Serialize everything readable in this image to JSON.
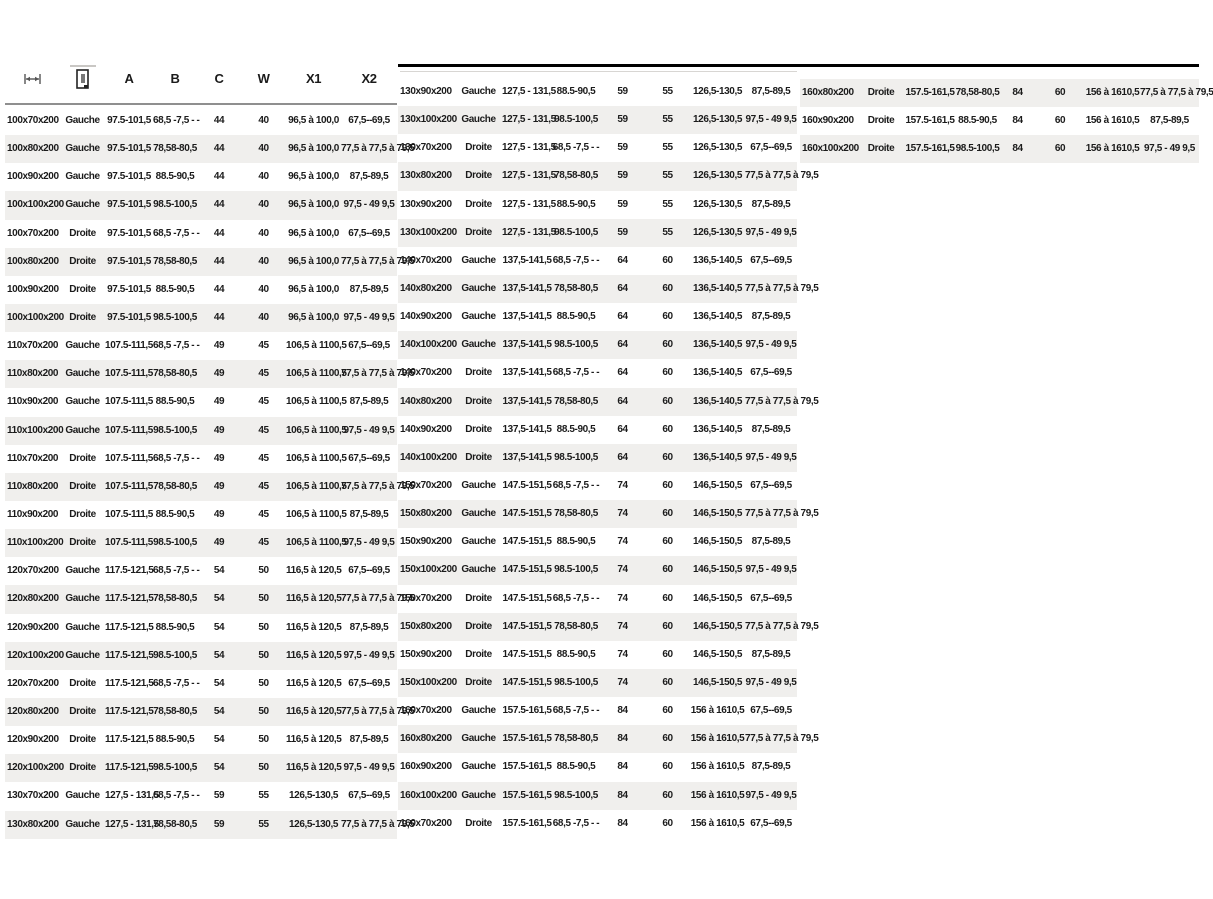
{
  "header": {
    "icons": {
      "width_icon": "width-dimension-icon",
      "door_icon": "door-orientation-icon"
    },
    "columns": [
      "A",
      "B",
      "C",
      "W",
      "X1",
      "X2"
    ]
  },
  "colors": {
    "stripe": "#f0efed",
    "rule_black": "#000000",
    "rule_gray": "#8f8f8f",
    "text": "#1b1b1b"
  },
  "tables": [
    {
      "rows": [
        {
          "size": "100x70x200",
          "side": "Gauche",
          "a": "97.5-101,5",
          "b": "68,5 -7,5 - -",
          "c": "44",
          "w": "40",
          "x1": "96,5 à 100,0",
          "x2": "67,5--69,5"
        },
        {
          "size": "100x80x200",
          "side": "Gauche",
          "a": "97.5-101,5",
          "b": "78,58-80,5",
          "c": "44",
          "w": "40",
          "x1": "96,5 à 100,0",
          "x2": "77,5 à 77,5 à 79,5"
        },
        {
          "size": "100x90x200",
          "side": "Gauche",
          "a": "97.5-101,5",
          "b": "88.5-90,5",
          "c": "44",
          "w": "40",
          "x1": "96,5 à 100,0",
          "x2": "87,5-89,5"
        },
        {
          "size": "100x100x200",
          "side": "Gauche",
          "a": "97.5-101,5",
          "b": "98.5-100,5",
          "c": "44",
          "w": "40",
          "x1": "96,5 à 100,0",
          "x2": "97,5 - 49 9,5"
        },
        {
          "size": "100x70x200",
          "side": "Droite",
          "a": "97.5-101,5",
          "b": "68,5 -7,5 - -",
          "c": "44",
          "w": "40",
          "x1": "96,5 à 100,0",
          "x2": "67,5--69,5"
        },
        {
          "size": "100x80x200",
          "side": "Droite",
          "a": "97.5-101,5",
          "b": "78,58-80,5",
          "c": "44",
          "w": "40",
          "x1": "96,5 à 100,0",
          "x2": "77,5 à 77,5 à 79,5"
        },
        {
          "size": "100x90x200",
          "side": "Droite",
          "a": "97.5-101,5",
          "b": "88.5-90,5",
          "c": "44",
          "w": "40",
          "x1": "96,5 à 100,0",
          "x2": "87,5-89,5"
        },
        {
          "size": "100x100x200",
          "side": "Droite",
          "a": "97.5-101,5",
          "b": "98.5-100,5",
          "c": "44",
          "w": "40",
          "x1": "96,5 à 100,0",
          "x2": "97,5 - 49 9,5"
        },
        {
          "size": "110x70x200",
          "side": "Gauche",
          "a": "107.5-111,5",
          "b": "68,5 -7,5 - -",
          "c": "49",
          "w": "45",
          "x1": "106,5 à 1100,5",
          "x2": "67,5--69,5"
        },
        {
          "size": "110x80x200",
          "side": "Gauche",
          "a": "107.5-111,5",
          "b": "78,58-80,5",
          "c": "49",
          "w": "45",
          "x1": "106,5 à 1100,5",
          "x2": "77,5 à 77,5 à 79,5"
        },
        {
          "size": "110x90x200",
          "side": "Gauche",
          "a": "107.5-111,5",
          "b": "88.5-90,5",
          "c": "49",
          "w": "45",
          "x1": "106,5 à 1100,5",
          "x2": "87,5-89,5"
        },
        {
          "size": "110x100x200",
          "side": "Gauche",
          "a": "107.5-111,5",
          "b": "98.5-100,5",
          "c": "49",
          "w": "45",
          "x1": "106,5 à 1100,5",
          "x2": "97,5 - 49 9,5"
        },
        {
          "size": "110x70x200",
          "side": "Droite",
          "a": "107.5-111,5",
          "b": "68,5 -7,5 - -",
          "c": "49",
          "w": "45",
          "x1": "106,5 à 1100,5",
          "x2": "67,5--69,5"
        },
        {
          "size": "110x80x200",
          "side": "Droite",
          "a": "107.5-111,5",
          "b": "78,58-80,5",
          "c": "49",
          "w": "45",
          "x1": "106,5 à 1100,5",
          "x2": "77,5 à 77,5 à 79,5"
        },
        {
          "size": "110x90x200",
          "side": "Droite",
          "a": "107.5-111,5",
          "b": "88.5-90,5",
          "c": "49",
          "w": "45",
          "x1": "106,5 à 1100,5",
          "x2": "87,5-89,5"
        },
        {
          "size": "110x100x200",
          "side": "Droite",
          "a": "107.5-111,5",
          "b": "98.5-100,5",
          "c": "49",
          "w": "45",
          "x1": "106,5 à 1100,5",
          "x2": "97,5 - 49 9,5"
        },
        {
          "size": "120x70x200",
          "side": "Gauche",
          "a": "117.5-121,5",
          "b": "68,5 -7,5 - -",
          "c": "54",
          "w": "50",
          "x1": "116,5 à 120,5",
          "x2": "67,5--69,5"
        },
        {
          "size": "120x80x200",
          "side": "Gauche",
          "a": "117.5-121,5",
          "b": "78,58-80,5",
          "c": "54",
          "w": "50",
          "x1": "116,5 à 120,5",
          "x2": "77,5 à 77,5 à 79,5"
        },
        {
          "size": "120x90x200",
          "side": "Gauche",
          "a": "117.5-121,5",
          "b": "88.5-90,5",
          "c": "54",
          "w": "50",
          "x1": "116,5 à 120,5",
          "x2": "87,5-89,5"
        },
        {
          "size": "120x100x200",
          "side": "Gauche",
          "a": "117.5-121,5",
          "b": "98.5-100,5",
          "c": "54",
          "w": "50",
          "x1": "116,5 à 120,5",
          "x2": "97,5 - 49 9,5"
        },
        {
          "size": "120x70x200",
          "side": "Droite",
          "a": "117.5-121,5",
          "b": "68,5 -7,5 - -",
          "c": "54",
          "w": "50",
          "x1": "116,5 à 120,5",
          "x2": "67,5--69,5"
        },
        {
          "size": "120x80x200",
          "side": "Droite",
          "a": "117.5-121,5",
          "b": "78,58-80,5",
          "c": "54",
          "w": "50",
          "x1": "116,5 à 120,5",
          "x2": "77,5 à 77,5 à 79,5"
        },
        {
          "size": "120x90x200",
          "side": "Droite",
          "a": "117.5-121,5",
          "b": "88.5-90,5",
          "c": "54",
          "w": "50",
          "x1": "116,5 à 120,5",
          "x2": "87,5-89,5"
        },
        {
          "size": "120x100x200",
          "side": "Droite",
          "a": "117.5-121,5",
          "b": "98.5-100,5",
          "c": "54",
          "w": "50",
          "x1": "116,5 à 120,5",
          "x2": "97,5 - 49 9,5"
        },
        {
          "size": "130x70x200",
          "side": "Gauche",
          "a": "127,5 - 131,5",
          "b": "68,5 -7,5 - -",
          "c": "59",
          "w": "55",
          "x1": "126,5-130,5",
          "x2": "67,5--69,5"
        },
        {
          "size": "130x80x200",
          "side": "Gauche",
          "a": "127,5 - 131,5",
          "b": "78,58-80,5",
          "c": "59",
          "w": "55",
          "x1": "126,5-130,5",
          "x2": "77,5 à 77,5 à 79,5"
        }
      ]
    },
    {
      "rows": [
        {
          "size": "130x90x200",
          "side": "Gauche",
          "a": "127,5 - 131,5",
          "b": "88.5-90,5",
          "c": "59",
          "w": "55",
          "x1": "126,5-130,5",
          "x2": "87,5-89,5"
        },
        {
          "size": "130x100x200",
          "side": "Gauche",
          "a": "127,5 - 131,5",
          "b": "98.5-100,5",
          "c": "59",
          "w": "55",
          "x1": "126,5-130,5",
          "x2": "97,5 - 49 9,5"
        },
        {
          "size": "130x70x200",
          "side": "Droite",
          "a": "127,5 - 131,5",
          "b": "68,5 -7,5 - -",
          "c": "59",
          "w": "55",
          "x1": "126,5-130,5",
          "x2": "67,5--69,5"
        },
        {
          "size": "130x80x200",
          "side": "Droite",
          "a": "127,5 - 131,5",
          "b": "78,58-80,5",
          "c": "59",
          "w": "55",
          "x1": "126,5-130,5",
          "x2": "77,5 à 77,5 à 79,5"
        },
        {
          "size": "130x90x200",
          "side": "Droite",
          "a": "127,5 - 131,5",
          "b": "88.5-90,5",
          "c": "59",
          "w": "55",
          "x1": "126,5-130,5",
          "x2": "87,5-89,5"
        },
        {
          "size": "130x100x200",
          "side": "Droite",
          "a": "127,5 - 131,5",
          "b": "98.5-100,5",
          "c": "59",
          "w": "55",
          "x1": "126,5-130,5",
          "x2": "97,5 - 49 9,5"
        },
        {
          "size": "140x70x200",
          "side": "Gauche",
          "a": "137,5-141,5",
          "b": "68,5 -7,5 - -",
          "c": "64",
          "w": "60",
          "x1": "136,5-140,5",
          "x2": "67,5--69,5"
        },
        {
          "size": "140x80x200",
          "side": "Gauche",
          "a": "137,5-141,5",
          "b": "78,58-80,5",
          "c": "64",
          "w": "60",
          "x1": "136,5-140,5",
          "x2": "77,5 à 77,5 à 79,5"
        },
        {
          "size": "140x90x200",
          "side": "Gauche",
          "a": "137,5-141,5",
          "b": "88.5-90,5",
          "c": "64",
          "w": "60",
          "x1": "136,5-140,5",
          "x2": "87,5-89,5"
        },
        {
          "size": "140x100x200",
          "side": "Gauche",
          "a": "137,5-141,5",
          "b": "98.5-100,5",
          "c": "64",
          "w": "60",
          "x1": "136,5-140,5",
          "x2": "97,5 - 49 9,5"
        },
        {
          "size": "140x70x200",
          "side": "Droite",
          "a": "137,5-141,5",
          "b": "68,5 -7,5 - -",
          "c": "64",
          "w": "60",
          "x1": "136,5-140,5",
          "x2": "67,5--69,5"
        },
        {
          "size": "140x80x200",
          "side": "Droite",
          "a": "137,5-141,5",
          "b": "78,58-80,5",
          "c": "64",
          "w": "60",
          "x1": "136,5-140,5",
          "x2": "77,5 à 77,5 à 79,5"
        },
        {
          "size": "140x90x200",
          "side": "Droite",
          "a": "137,5-141,5",
          "b": "88.5-90,5",
          "c": "64",
          "w": "60",
          "x1": "136,5-140,5",
          "x2": "87,5-89,5"
        },
        {
          "size": "140x100x200",
          "side": "Droite",
          "a": "137,5-141,5",
          "b": "98.5-100,5",
          "c": "64",
          "w": "60",
          "x1": "136,5-140,5",
          "x2": "97,5 - 49 9,5"
        },
        {
          "size": "150x70x200",
          "side": "Gauche",
          "a": "147.5-151,5",
          "b": "68,5 -7,5 - -",
          "c": "74",
          "w": "60",
          "x1": "146,5-150,5",
          "x2": "67,5--69,5"
        },
        {
          "size": "150x80x200",
          "side": "Gauche",
          "a": "147.5-151,5",
          "b": "78,58-80,5",
          "c": "74",
          "w": "60",
          "x1": "146,5-150,5",
          "x2": "77,5 à 77,5 à 79,5"
        },
        {
          "size": "150x90x200",
          "side": "Gauche",
          "a": "147.5-151,5",
          "b": "88.5-90,5",
          "c": "74",
          "w": "60",
          "x1": "146,5-150,5",
          "x2": "87,5-89,5"
        },
        {
          "size": "150x100x200",
          "side": "Gauche",
          "a": "147.5-151,5",
          "b": "98.5-100,5",
          "c": "74",
          "w": "60",
          "x1": "146,5-150,5",
          "x2": "97,5 - 49 9,5"
        },
        {
          "size": "150x70x200",
          "side": "Droite",
          "a": "147.5-151,5",
          "b": "68,5 -7,5 - -",
          "c": "74",
          "w": "60",
          "x1": "146,5-150,5",
          "x2": "67,5--69,5"
        },
        {
          "size": "150x80x200",
          "side": "Droite",
          "a": "147.5-151,5",
          "b": "78,58-80,5",
          "c": "74",
          "w": "60",
          "x1": "146,5-150,5",
          "x2": "77,5 à 77,5 à 79,5"
        },
        {
          "size": "150x90x200",
          "side": "Droite",
          "a": "147.5-151,5",
          "b": "88.5-90,5",
          "c": "74",
          "w": "60",
          "x1": "146,5-150,5",
          "x2": "87,5-89,5"
        },
        {
          "size": "150x100x200",
          "side": "Droite",
          "a": "147.5-151,5",
          "b": "98.5-100,5",
          "c": "74",
          "w": "60",
          "x1": "146,5-150,5",
          "x2": "97,5 - 49 9,5"
        },
        {
          "size": "160x70x200",
          "side": "Gauche",
          "a": "157.5-161,5",
          "b": "68,5 -7,5 - -",
          "c": "84",
          "w": "60",
          "x1": "156 à 1610,5",
          "x2": "67,5--69,5"
        },
        {
          "size": "160x80x200",
          "side": "Gauche",
          "a": "157.5-161,5",
          "b": "78,58-80,5",
          "c": "84",
          "w": "60",
          "x1": "156 à 1610,5",
          "x2": "77,5 à 77,5 à 79,5"
        },
        {
          "size": "160x90x200",
          "side": "Gauche",
          "a": "157.5-161,5",
          "b": "88.5-90,5",
          "c": "84",
          "w": "60",
          "x1": "156 à 1610,5",
          "x2": "87,5-89,5"
        },
        {
          "size": "160x100x200",
          "side": "Gauche",
          "a": "157.5-161,5",
          "b": "98.5-100,5",
          "c": "84",
          "w": "60",
          "x1": "156 à 1610,5",
          "x2": "97,5 - 49 9,5"
        },
        {
          "size": "160x70x200",
          "side": "Droite",
          "a": "157.5-161,5",
          "b": "68,5 -7,5 - -",
          "c": "84",
          "w": "60",
          "x1": "156 à 1610,5",
          "x2": "67,5--69,5"
        }
      ]
    },
    {
      "rows": [
        {
          "size": "160x80x200",
          "side": "Droite",
          "a": "157.5-161,5",
          "b": "78,58-80,5",
          "c": "84",
          "w": "60",
          "x1": "156 à 1610,5",
          "x2": "77,5 à 77,5 à 79,5"
        },
        {
          "size": "160x90x200",
          "side": "Droite",
          "a": "157.5-161,5",
          "b": "88.5-90,5",
          "c": "84",
          "w": "60",
          "x1": "156 à 1610,5",
          "x2": "87,5-89,5"
        },
        {
          "size": "160x100x200",
          "side": "Droite",
          "a": "157.5-161,5",
          "b": "98.5-100,5",
          "c": "84",
          "w": "60",
          "x1": "156 à 1610,5",
          "x2": "97,5 - 49 9,5"
        }
      ]
    }
  ]
}
